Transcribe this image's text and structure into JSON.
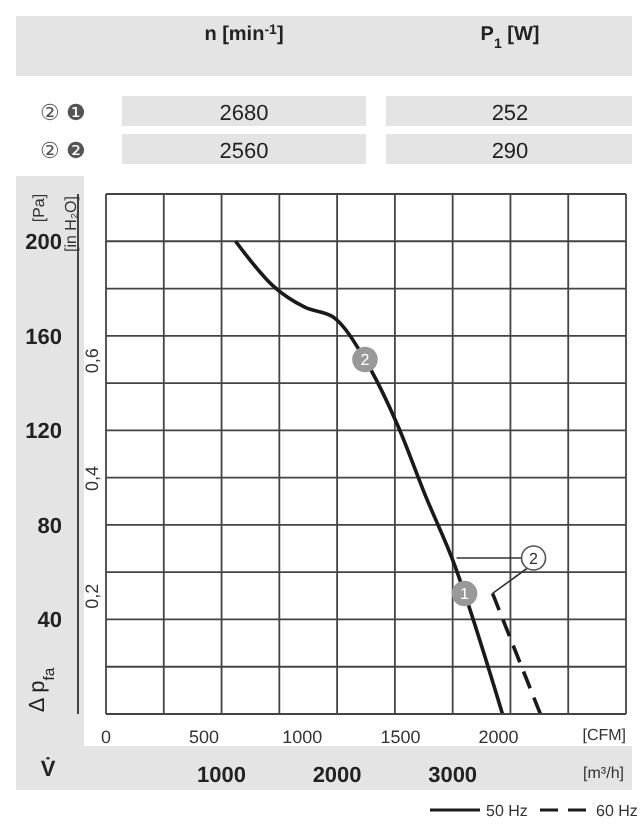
{
  "chart_data": {
    "type": "line",
    "xlabel": "V̇",
    "x2label": "[CFM]",
    "ylabel": "Δ p$_{fa}$",
    "y2label": "[in H₂O]",
    "annotations": [
      "n [min$^{-1}$]",
      "P$_{1}$ [W]",
      "② ❶",
      "2680",
      "252",
      "② ❷",
      "2560",
      "290",
      "[Pa]",
      "[m³/h]",
      {
        "text": "2",
        "x": 2241,
        "y": 150
      },
      {
        "text": "1",
        "x": 3103,
        "y": 51
      },
      {
        "text": "2",
        "x": 3700,
        "y": 66
      }
    ],
    "series": [
      {
        "name": "50 Hz",
        "color": "#1a1a1a",
        "line_style": "solid",
        "x": [
          1121,
          1448,
          1724,
          1966,
          2241,
          2534,
          2759,
          3017,
          3103,
          3431
        ],
        "values": [
          200,
          181,
          172,
          168,
          150,
          121,
          93,
          63,
          51,
          0
        ]
      },
      {
        "name": "60 Hz",
        "color": "#1a1a1a",
        "line_style": "dashed",
        "x": [
          3345,
          3759
        ],
        "values": [
          51,
          0
        ]
      }
    ],
    "xlim": [
      0,
      4500
    ],
    "xticks": [
      {
        "value": 0,
        "label": null
      },
      {
        "value": 500,
        "label": null
      },
      1000,
      {
        "value": 1500,
        "label": null
      },
      2000,
      {
        "value": 2500,
        "label": null
      },
      3000,
      {
        "value": 3500,
        "label": null
      },
      {
        "value": 4000,
        "label": null
      },
      {
        "value": 4500,
        "label": null
      }
    ],
    "x2lim": [
      0,
      2649
    ],
    "x2ticks": [
      0,
      500,
      1000,
      1500,
      2000
    ],
    "ylim": [
      0,
      220
    ],
    "yticks": [
      {
        "value": 0,
        "label": null
      },
      {
        "value": 20,
        "label": null
      },
      40,
      {
        "value": 60,
        "label": null
      },
      80,
      {
        "value": 100,
        "label": null
      },
      120,
      {
        "value": 140,
        "label": null
      },
      160,
      {
        "value": 180,
        "label": null
      },
      200,
      {
        "value": 220,
        "label": null
      }
    ],
    "y2lim": [
      0,
      0.883
    ],
    "y2ticks": [
      {
        "value": 0.2,
        "label": "0,2"
      },
      {
        "value": 0.4,
        "label": "0,4"
      },
      {
        "value": 0.6,
        "label": "0,6"
      }
    ],
    "grid": true,
    "legend": "bottom right",
    "marker": "none"
  }
}
